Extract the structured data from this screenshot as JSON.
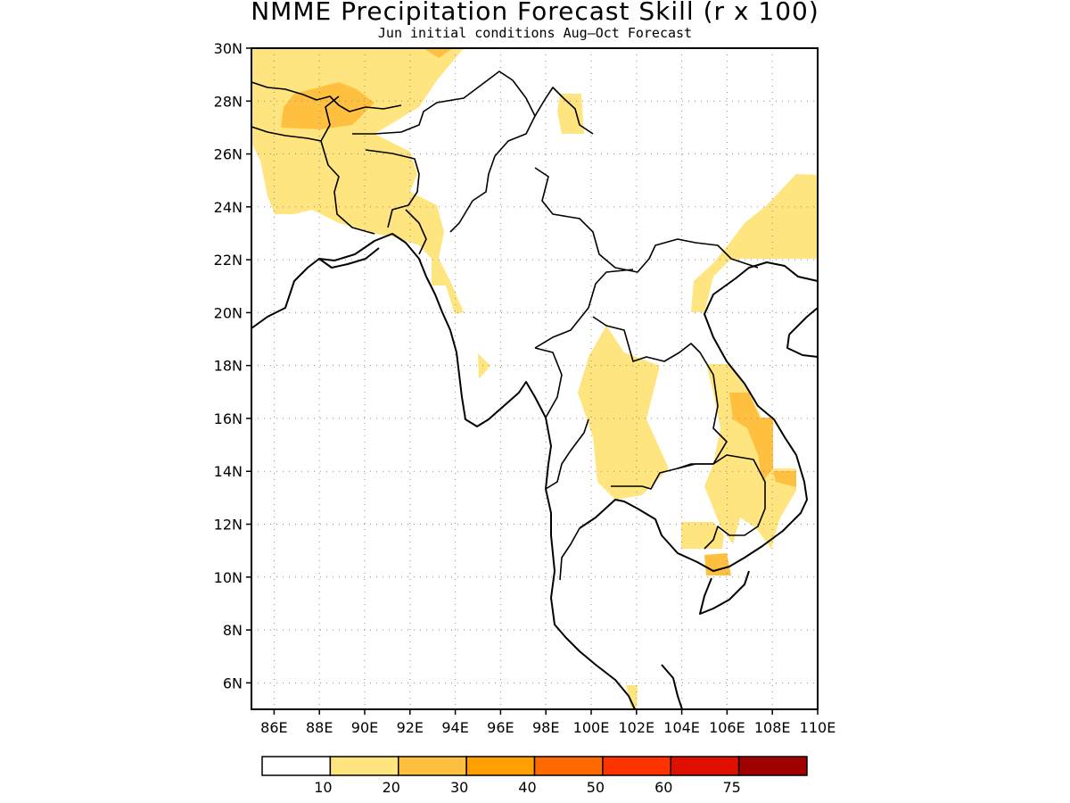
{
  "title": "NMME Precipitation Forecast Skill (r x 100)",
  "subtitle": "Jun initial conditions  Aug–Oct Forecast",
  "map": {
    "lat_range": [
      5,
      30
    ],
    "lon_range": [
      85,
      110
    ],
    "lat_labels": [
      "30N",
      "28N",
      "26N",
      "24N",
      "22N",
      "20N",
      "18N",
      "16N",
      "14N",
      "12N",
      "10N",
      "8N",
      "6N"
    ],
    "lon_labels": [
      "86E",
      "88E",
      "90E",
      "92E",
      "94E",
      "96E",
      "98E",
      "100E",
      "102E",
      "104E",
      "106E",
      "108E",
      "110E"
    ]
  },
  "legend": {
    "labels": [
      "10",
      "20",
      "30",
      "40",
      "50",
      "60",
      "75"
    ],
    "colors": [
      "#ffffff",
      "#ffe57f",
      "#ffc040",
      "#ffa000",
      "#ff6a00",
      "#ff3300",
      "#e01000",
      "#a00000"
    ]
  }
}
